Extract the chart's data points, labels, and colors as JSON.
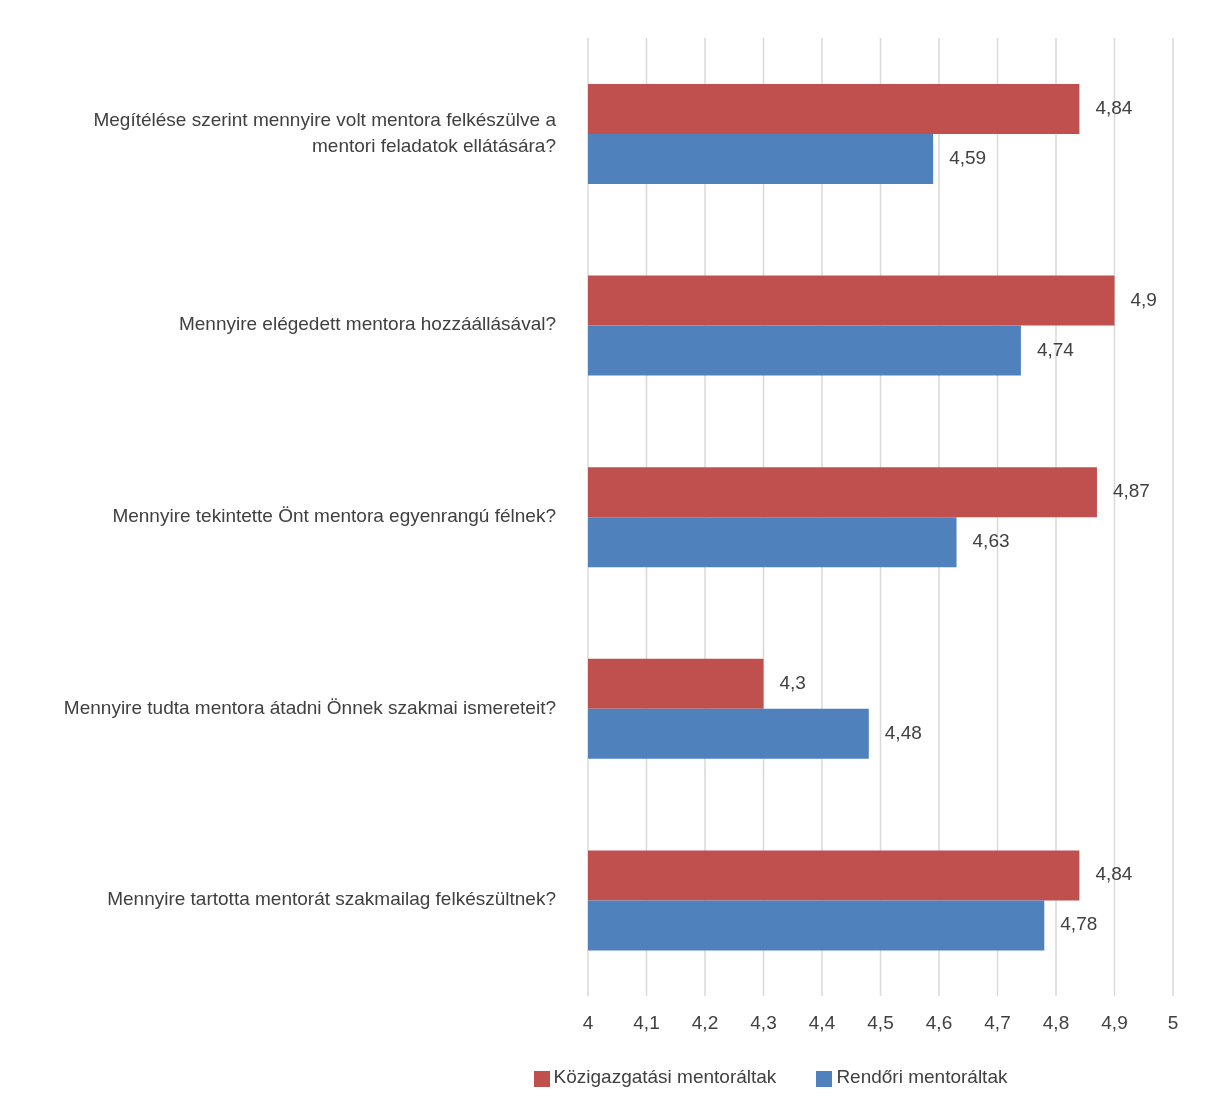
{
  "chart_data": {
    "type": "bar",
    "orientation": "horizontal",
    "categories": [
      "Megítélése szerint mennyire volt mentora felkészülve a mentori feladatok ellátására?",
      "Mennyire elégedett mentora hozzáállásával?",
      "Mennyire tekintette Önt mentora egyenrangú félnek?",
      "Mennyire tudta mentora átadni Önnek szakmai ismereteit?",
      "Mennyire tartotta mentorát szakmailag felkészültnek?"
    ],
    "series": [
      {
        "name": "Közigazgatási mentoráltak",
        "color": "#c0504d",
        "values": [
          4.84,
          4.9,
          4.87,
          4.3,
          4.84
        ],
        "value_labels": [
          "4,84",
          "4,9",
          "4,87",
          "4,3",
          "4,84"
        ]
      },
      {
        "name": "Rendőri mentoráltak",
        "color": "#4f81bd",
        "values": [
          4.59,
          4.74,
          4.63,
          4.48,
          4.78
        ],
        "value_labels": [
          "4,59",
          "4,74",
          "4,63",
          "4,48",
          "4,78"
        ]
      }
    ],
    "xlim": [
      4,
      5
    ],
    "xticks": [
      4,
      {
        "value": 4.1,
        "label": "4,1"
      },
      {
        "value": 4.2,
        "label": "4,2"
      },
      {
        "value": 4.3,
        "label": "4,3"
      },
      {
        "value": 4.4,
        "label": "4,4"
      },
      {
        "value": 4.5,
        "label": "4,5"
      },
      {
        "value": 4.6,
        "label": "4,6"
      },
      {
        "value": 4.7,
        "label": "4,7"
      },
      {
        "value": 4.8,
        "label": "4,8"
      },
      {
        "value": 4.9,
        "label": "4,9"
      },
      5
    ],
    "grid": "x",
    "legend": "bottom"
  }
}
